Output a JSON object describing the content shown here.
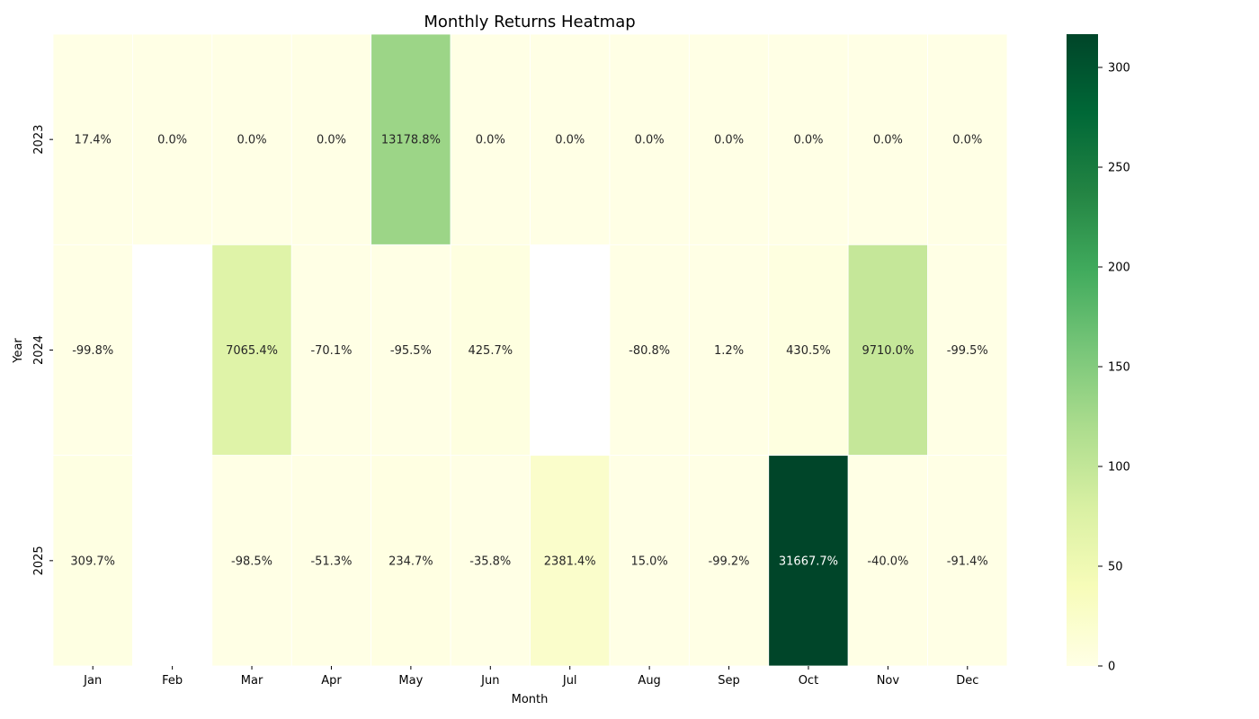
{
  "chart_data": {
    "type": "heatmap",
    "title": "Monthly Returns Heatmap",
    "xlabel": "Month",
    "ylabel": "Year",
    "x_categories": [
      "Jan",
      "Feb",
      "Mar",
      "Apr",
      "May",
      "Jun",
      "Jul",
      "Aug",
      "Sep",
      "Oct",
      "Nov",
      "Dec"
    ],
    "y_categories": [
      "2023",
      "2024",
      "2025"
    ],
    "values": [
      [
        17.4,
        0.0,
        0.0,
        0.0,
        13178.8,
        0.0,
        0.0,
        0.0,
        0.0,
        0.0,
        0.0,
        0.0
      ],
      [
        -99.8,
        null,
        7065.4,
        -70.1,
        -95.5,
        425.7,
        null,
        -80.8,
        1.2,
        430.5,
        9710.0,
        -99.5
      ],
      [
        309.7,
        null,
        -98.5,
        -51.3,
        234.7,
        -35.8,
        2381.4,
        15.0,
        -99.2,
        31667.7,
        -40.0,
        -91.4
      ]
    ],
    "cell_labels": [
      [
        "17.4%",
        "0.0%",
        "0.0%",
        "0.0%",
        "13178.8%",
        "0.0%",
        "0.0%",
        "0.0%",
        "0.0%",
        "0.0%",
        "0.0%",
        "0.0%"
      ],
      [
        "-99.8%",
        "",
        "7065.4%",
        "-70.1%",
        "-95.5%",
        "425.7%",
        "",
        "-80.8%",
        "1.2%",
        "430.5%",
        "9710.0%",
        "-99.5%"
      ],
      [
        "309.7%",
        "",
        "-98.5%",
        "-51.3%",
        "234.7%",
        "-35.8%",
        "2381.4%",
        "15.0%",
        "-99.2%",
        "31667.7%",
        "-40.0%",
        "-91.4%"
      ]
    ],
    "colorbar": {
      "colormap": "YlGn",
      "range": [
        0,
        316.677
      ],
      "ticks": [
        0,
        50,
        100,
        150,
        200,
        250,
        300
      ],
      "tick_labels": [
        "0",
        "50",
        "100",
        "150",
        "200",
        "250",
        "300"
      ]
    },
    "missing_color": "#ffffff",
    "grid": false,
    "legend": "colorbar-right"
  }
}
